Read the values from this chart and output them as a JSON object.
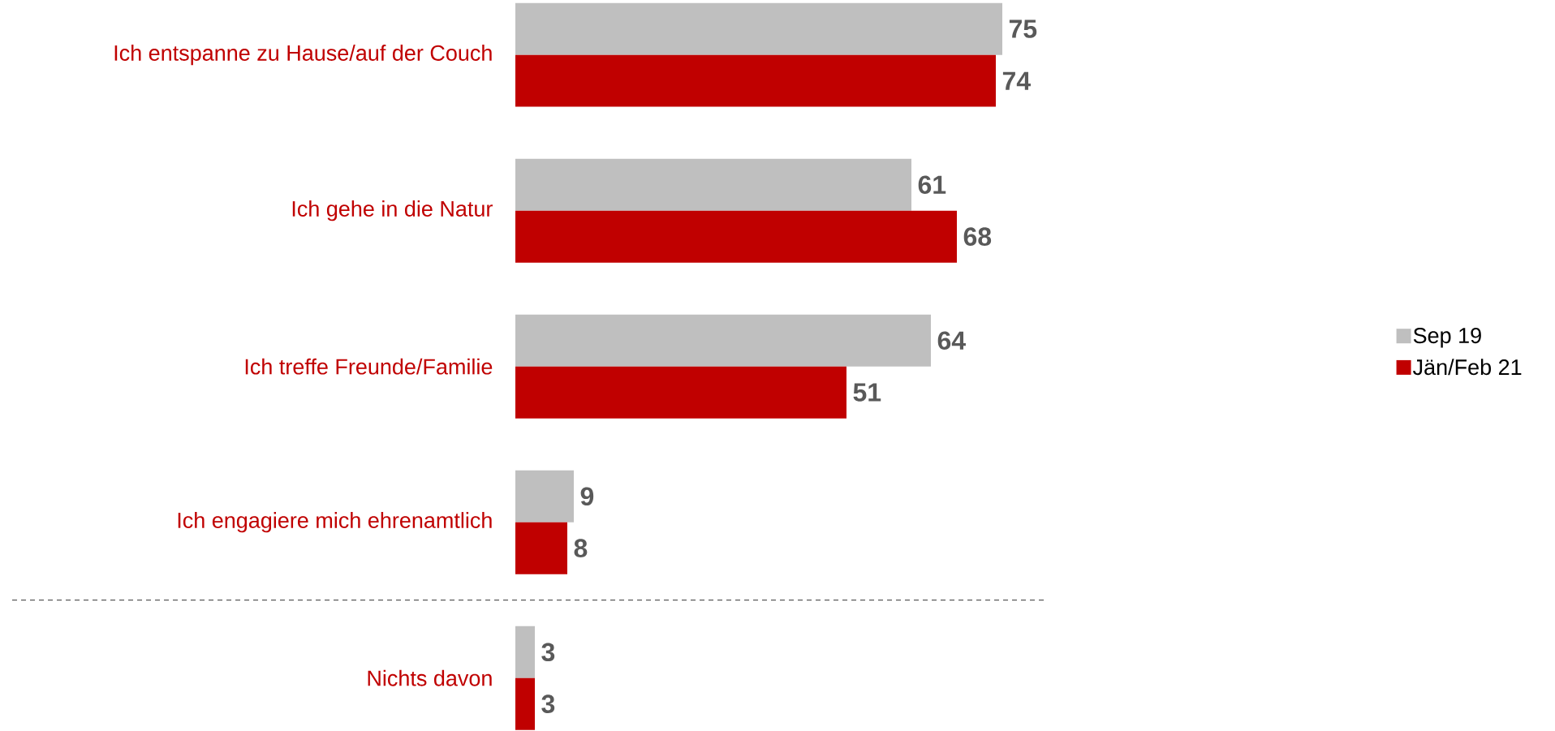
{
  "chart_data": {
    "type": "bar",
    "orientation": "horizontal",
    "categories": [
      "Ich entspanne zu Hause/auf der Couch",
      "Ich gehe in die Natur",
      "Ich treffe Freunde/Familie",
      "Ich engagiere mich ehrenamtlich",
      "Nichts davon"
    ],
    "series": [
      {
        "name": "Sep 19",
        "color": "#bfbfbf",
        "values": [
          75,
          61,
          64,
          9,
          3
        ]
      },
      {
        "name": "Jän/Feb 21",
        "color": "#c00000",
        "values": [
          74,
          68,
          51,
          8,
          3
        ]
      }
    ],
    "data_labels": true,
    "legend": "right"
  }
}
